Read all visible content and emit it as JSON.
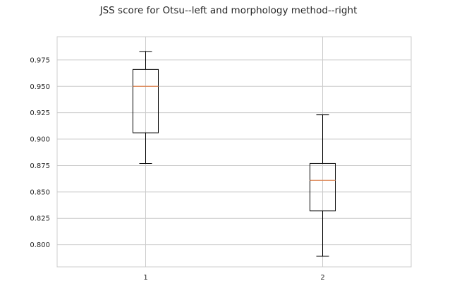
{
  "chart_data": {
    "type": "boxplot",
    "title": "JSS score for Otsu--left  and morphology method--right",
    "xlabel": "",
    "ylabel": "",
    "categories": [
      "1",
      "2"
    ],
    "boxes": [
      {
        "category": "1",
        "whisker_low": 0.877,
        "q1": 0.906,
        "median": 0.95,
        "q3": 0.966,
        "whisker_high": 0.983
      },
      {
        "category": "2",
        "whisker_low": 0.789,
        "q1": 0.832,
        "median": 0.861,
        "q3": 0.877,
        "whisker_high": 0.923
      }
    ],
    "ylim": [
      0.779,
      0.997
    ],
    "yticks": [
      0.8,
      0.825,
      0.85,
      0.875,
      0.9,
      0.925,
      0.95,
      0.975
    ],
    "ytick_labels": [
      "0.800",
      "0.825",
      "0.850",
      "0.875",
      "0.900",
      "0.925",
      "0.950",
      "0.975"
    ],
    "grid": true,
    "colors": {
      "median": "#dd8452",
      "box": "#000000",
      "grid": "#cccccc",
      "frame": "#cccccc"
    }
  }
}
